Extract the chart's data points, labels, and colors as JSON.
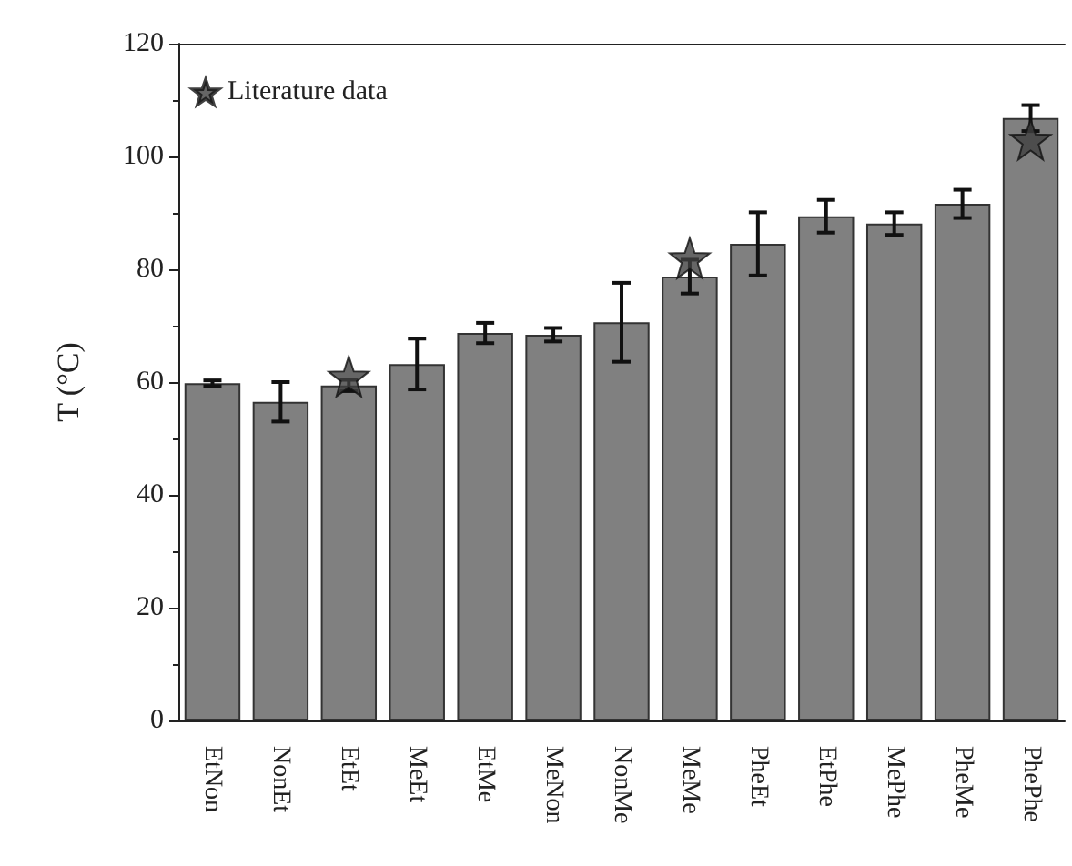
{
  "chart_data": {
    "type": "bar",
    "ylabel": "T (°C)",
    "categories": [
      "EtNon",
      "NonEt",
      "EtEt",
      "MeEt",
      "EtMe",
      "MeNon",
      "NonMe",
      "MeMe",
      "PheEt",
      "EtPhe",
      "MePhe",
      "PheMe",
      "PhePhe"
    ],
    "series": [
      {
        "color": "#808080",
        "values": [
          59.8,
          56.5,
          59.4,
          63.2,
          68.7,
          68.4,
          70.6,
          78.7,
          84.5,
          89.4,
          88.1,
          91.6,
          106.8
        ],
        "errors": [
          0.5,
          3.5,
          1,
          4.5,
          1.8,
          1.2,
          7,
          3,
          5.6,
          2.9,
          2,
          2.5,
          2.3
        ]
      },
      {
        "type": "scatter",
        "name": "Literature data",
        "color": "#404040",
        "marker": "star",
        "x": [
          "EtEt",
          "MeMe",
          "PhePhe"
        ],
        "values": [
          61,
          82,
          103
        ]
      }
    ],
    "ylim": [
      0,
      120
    ],
    "yticks": [
      0,
      20,
      40,
      60,
      80,
      100,
      120
    ],
    "grid": false,
    "legend": "top left"
  }
}
